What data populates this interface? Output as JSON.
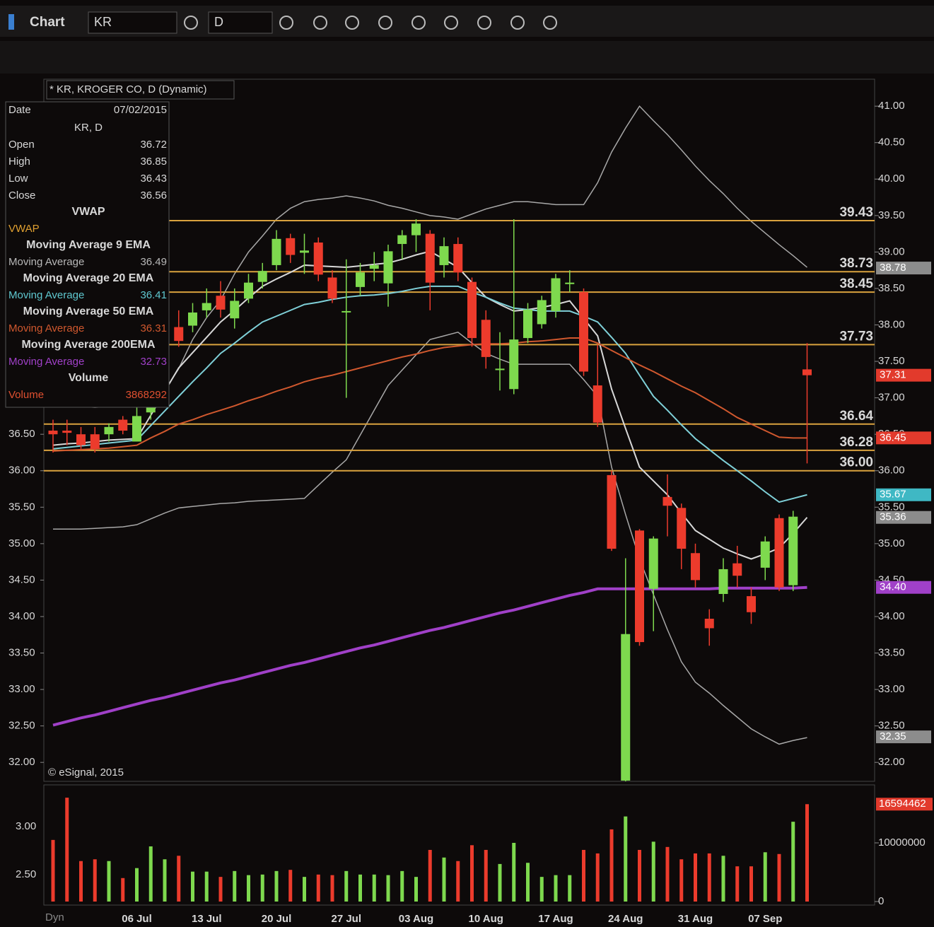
{
  "toolbar": {
    "title": "Chart",
    "symbol": "KR",
    "interval": "D"
  },
  "footer": {
    "mode": "Dyn"
  },
  "chart_data": {
    "type": "candlestick",
    "title": "* KR, KROGER CO, D (Dynamic)",
    "credit": "© eSignal, 2015",
    "categories": [
      null,
      null,
      null,
      null,
      null,
      null,
      "06 Jul",
      null,
      null,
      null,
      null,
      "13 Jul",
      null,
      null,
      null,
      null,
      "20 Jul",
      null,
      null,
      null,
      null,
      "27 Jul",
      null,
      null,
      null,
      null,
      "03 Aug",
      null,
      null,
      null,
      null,
      "10 Aug",
      null,
      null,
      null,
      null,
      "17 Aug",
      null,
      null,
      null,
      null,
      "24 Aug",
      null,
      null,
      null,
      null,
      "31 Aug",
      null,
      null,
      null,
      null,
      "07 Sep",
      null,
      null,
      null
    ],
    "open": [
      36.55,
      36.55,
      36.5,
      36.5,
      36.5,
      36.7,
      36.4,
      36.8,
      37.1,
      37.97,
      37.99,
      38.2,
      38.4,
      38.09,
      38.36,
      38.59,
      38.82,
      39.19,
      38.99,
      39.13,
      38.65,
      38.18,
      38.52,
      38.77,
      38.57,
      39.11,
      39.23,
      39.25,
      38.82,
      39.11,
      38.59,
      38.07,
      37.38,
      37.12,
      37.82,
      38.01,
      38.19,
      38.56,
      38.45,
      37.17,
      35.94,
      31.75,
      35.18,
      34.38,
      35.64,
      35.49,
      34.87,
      33.97,
      34.31,
      34.73,
      34.28,
      34.67,
      35.35,
      34.43,
      37.39
    ],
    "high": [
      36.7,
      36.7,
      36.6,
      36.6,
      36.65,
      36.75,
      36.9,
      37.1,
      37.4,
      38.2,
      38.3,
      38.5,
      38.6,
      38.5,
      38.7,
      38.85,
      39.3,
      39.25,
      39.25,
      39.2,
      38.75,
      38.9,
      38.85,
      39.0,
      39.1,
      39.3,
      39.45,
      39.3,
      39.2,
      39.2,
      38.65,
      38.2,
      37.9,
      39.45,
      38.3,
      38.4,
      38.7,
      38.75,
      38.5,
      37.73,
      36.0,
      34.8,
      35.2,
      35.1,
      35.95,
      35.55,
      35.0,
      34.1,
      34.8,
      34.97,
      34.4,
      35.1,
      35.4,
      35.45,
      37.75
    ],
    "low": [
      36.25,
      36.35,
      36.3,
      36.25,
      36.4,
      36.5,
      36.4,
      36.7,
      37.0,
      37.7,
      37.9,
      38.1,
      38.1,
      37.95,
      38.3,
      38.5,
      38.75,
      38.85,
      38.7,
      38.6,
      38.3,
      37.0,
      38.4,
      38.6,
      38.25,
      38.9,
      39.0,
      38.2,
      38.65,
      38.6,
      37.7,
      37.4,
      37.1,
      37.05,
      37.75,
      37.95,
      38.1,
      38.45,
      37.3,
      36.6,
      34.9,
      31.6,
      33.6,
      33.8,
      35.1,
      34.65,
      34.4,
      33.6,
      34.2,
      34.4,
      33.9,
      34.5,
      34.35,
      34.35,
      36.1
    ],
    "close": [
      36.5,
      36.52,
      36.35,
      36.3,
      36.6,
      36.55,
      36.75,
      37.0,
      37.3,
      37.78,
      38.17,
      38.3,
      38.21,
      38.33,
      38.58,
      38.74,
      39.18,
      38.96,
      39.02,
      38.69,
      38.36,
      38.19,
      38.72,
      38.82,
      39.01,
      39.23,
      39.39,
      38.58,
      39.08,
      38.72,
      37.82,
      37.56,
      37.4,
      37.8,
      38.21,
      38.34,
      38.64,
      38.58,
      37.36,
      36.66,
      34.93,
      33.76,
      33.65,
      35.07,
      35.52,
      34.93,
      34.5,
      33.84,
      34.65,
      34.56,
      34.06,
      35.03,
      34.4,
      35.37,
      37.31
    ],
    "up_color": "#7ed94e",
    "down_color": "#ec3b2c",
    "series": [
      {
        "name": "Moving Average 9 EMA",
        "color": "#d8d8d8",
        "values": [
          36.35,
          36.37,
          36.38,
          36.4,
          36.42,
          36.43,
          36.44,
          36.76,
          37.09,
          37.41,
          37.62,
          37.83,
          38.04,
          38.2,
          38.37,
          38.53,
          38.63,
          38.72,
          38.82,
          38.81,
          38.8,
          38.79,
          38.81,
          38.83,
          38.85,
          38.9,
          38.96,
          39.01,
          38.9,
          38.79,
          38.58,
          38.38,
          38.28,
          38.19,
          38.21,
          38.24,
          38.28,
          38.33,
          38.09,
          37.85,
          37.12,
          36.58,
          36.05,
          35.86,
          35.67,
          35.42,
          35.18,
          35.06,
          34.94,
          34.86,
          34.79,
          34.86,
          34.94,
          35.14,
          35.36
        ]
      },
      {
        "name": "Moving Average 20 EMA",
        "color": "#7fd0d8",
        "values": [
          36.3,
          36.32,
          36.34,
          36.36,
          36.38,
          36.4,
          36.42,
          36.62,
          36.82,
          37.02,
          37.22,
          37.41,
          37.61,
          37.75,
          37.9,
          38.04,
          38.12,
          38.2,
          38.28,
          38.31,
          38.35,
          38.38,
          38.4,
          38.41,
          38.43,
          38.46,
          38.5,
          38.53,
          38.53,
          38.53,
          38.45,
          38.38,
          38.3,
          38.23,
          38.21,
          38.19,
          38.19,
          38.19,
          38.12,
          38.04,
          37.83,
          37.61,
          37.31,
          37.02,
          36.83,
          36.63,
          36.44,
          36.29,
          36.14,
          36.0,
          35.86,
          35.71,
          35.57,
          35.62,
          35.67
        ]
      },
      {
        "name": "Moving Average 50 EMA",
        "color": "#d0582e",
        "values": [
          36.27,
          36.28,
          36.29,
          36.3,
          36.31,
          36.33,
          36.35,
          36.45,
          36.54,
          36.64,
          36.7,
          36.77,
          36.83,
          36.89,
          36.96,
          37.02,
          37.09,
          37.15,
          37.22,
          37.27,
          37.31,
          37.36,
          37.41,
          37.46,
          37.51,
          37.56,
          37.6,
          37.65,
          37.69,
          37.71,
          37.73,
          37.74,
          37.74,
          37.75,
          37.77,
          37.78,
          37.8,
          37.82,
          37.82,
          37.75,
          37.65,
          37.55,
          37.45,
          37.36,
          37.26,
          37.16,
          37.07,
          36.96,
          36.85,
          36.73,
          36.64,
          36.55,
          36.46,
          36.45,
          36.45
        ]
      },
      {
        "name": "Moving Average 200EMA",
        "color": "#a040c8",
        "values": [
          32.51,
          32.56,
          32.61,
          32.65,
          32.7,
          32.75,
          32.8,
          32.85,
          32.89,
          32.94,
          32.99,
          33.04,
          33.09,
          33.13,
          33.18,
          33.23,
          33.28,
          33.33,
          33.37,
          33.42,
          33.47,
          33.52,
          33.57,
          33.61,
          33.66,
          33.71,
          33.76,
          33.81,
          33.85,
          33.9,
          33.95,
          34.0,
          34.05,
          34.09,
          34.14,
          34.19,
          34.24,
          34.29,
          34.33,
          34.38,
          34.38,
          34.38,
          34.38,
          34.38,
          34.38,
          34.38,
          34.38,
          34.38,
          34.39,
          34.39,
          34.39,
          34.39,
          34.39,
          34.39,
          34.4
        ]
      }
    ],
    "bands": {
      "color": "#a8a8a8",
      "upper": [
        36.9,
        36.9,
        36.88,
        36.87,
        36.88,
        36.9,
        36.95,
        37.0,
        37.1,
        37.4,
        37.8,
        38.1,
        38.34,
        38.7,
        39.0,
        39.22,
        39.45,
        39.6,
        39.69,
        39.72,
        39.74,
        39.77,
        39.74,
        39.7,
        39.64,
        39.6,
        39.55,
        39.5,
        39.48,
        39.45,
        39.52,
        39.59,
        39.64,
        39.69,
        39.69,
        39.67,
        39.65,
        39.65,
        39.65,
        39.95,
        40.37,
        40.7,
        41.0,
        40.8,
        40.61,
        40.4,
        40.18,
        39.98,
        39.8,
        39.6,
        39.42,
        39.26,
        39.1,
        38.95,
        38.79
      ],
      "lower": [
        35.2,
        35.2,
        35.2,
        35.21,
        35.22,
        35.23,
        35.26,
        35.34,
        35.42,
        35.49,
        35.51,
        35.53,
        35.55,
        35.56,
        35.58,
        35.59,
        35.6,
        35.61,
        35.62,
        35.8,
        35.98,
        36.15,
        36.49,
        36.83,
        37.17,
        37.38,
        37.59,
        37.8,
        37.85,
        37.9,
        37.75,
        37.61,
        37.53,
        37.46,
        37.46,
        37.46,
        37.46,
        37.46,
        37.25,
        37.02,
        36.05,
        35.4,
        34.79,
        34.3,
        33.82,
        33.38,
        33.1,
        32.95,
        32.78,
        32.62,
        32.46,
        32.35,
        32.25,
        32.3,
        32.34
      ]
    },
    "levels": {
      "color": "#d9a23e",
      "values": [
        39.43,
        38.73,
        38.45,
        37.73,
        36.64,
        36.28,
        {
          "value": 36,
          "label": "36.00"
        }
      ]
    },
    "price_tags": [
      {
        "value": 38.78,
        "color": "#8c8c8c"
      },
      {
        "value": 37.31,
        "color": "#e23a2c"
      },
      {
        "value": 36.45,
        "color": "#e23a2c"
      },
      {
        "value": 35.67,
        "color": "#3fb8c4"
      },
      {
        "value": 35.36,
        "color": "#8c8c8c"
      },
      {
        "value": 34.4,
        "label": "34.40",
        "color": "#a040c8"
      },
      {
        "value": 32.35,
        "color": "#8c8c8c"
      }
    ],
    "ylim": [
      31.74,
      41.37
    ],
    "yticks": [
      {
        "value": 32,
        "label": "32.00"
      },
      {
        "value": 32.5,
        "label": "32.50"
      },
      {
        "value": 33,
        "label": "33.00"
      },
      {
        "value": 33.5,
        "label": "33.50"
      },
      {
        "value": 34,
        "label": "34.00"
      },
      {
        "value": 34.5,
        "label": "34.50"
      },
      {
        "value": 35,
        "label": "35.00"
      },
      {
        "value": 35.5,
        "label": "35.50"
      },
      {
        "value": 36,
        "label": "36.00"
      },
      {
        "value": 36.5,
        "label": "36.50"
      },
      {
        "value": 37,
        "label": "37.00"
      },
      {
        "value": 37.5,
        "label": "37.50"
      },
      {
        "value": 38,
        "label": "38.00"
      },
      {
        "value": 38.5,
        "label": "38.50"
      },
      {
        "value": 39,
        "label": "39.00"
      },
      {
        "value": 39.5,
        "label": "39.50"
      },
      {
        "value": 40,
        "label": "40.00"
      },
      {
        "value": 40.5,
        "label": "40.50"
      },
      {
        "value": 41,
        "label": "41.00"
      }
    ],
    "volume": {
      "values": [
        10500000,
        17700000,
        6900000,
        7200000,
        6900000,
        4000000,
        5700000,
        9400000,
        7200000,
        7800000,
        5100000,
        5100000,
        4200000,
        5200000,
        4500000,
        4600000,
        5200000,
        5400000,
        4200000,
        4600000,
        4500000,
        5200000,
        4600000,
        4600000,
        4500000,
        5200000,
        4200000,
        8800000,
        7500000,
        6900000,
        9600000,
        8800000,
        6400000,
        10000000,
        6600000,
        4200000,
        4500000,
        4500000,
        8800000,
        8200000,
        12300000,
        14500000,
        8800000,
        10200000,
        9300000,
        7200000,
        8200000,
        8200000,
        7800000,
        6000000,
        6000000,
        8400000,
        8100000,
        13600000,
        16594462
      ],
      "ylim": [
        0,
        19640000
      ],
      "yticks": [
        0,
        10000000
      ],
      "last_color": "#e23a2c",
      "left_labels": [
        "3.00",
        "2.50"
      ]
    },
    "data_window": {
      "date_label": "Date",
      "date": "07/02/2015",
      "symbol": "KR, D",
      "ohlc": [
        {
          "label": "Open",
          "value": 36.72
        },
        {
          "label": "High",
          "value": 36.85
        },
        {
          "label": "Low",
          "value": 36.43
        },
        {
          "label": "Close",
          "value": 36.56
        }
      ],
      "studies": [
        {
          "header": "VWAP",
          "label": "VWAP",
          "color": "#e0a030"
        },
        {
          "header": "Moving Average 9 EMA",
          "label": "Moving Average",
          "value": 36.49,
          "color": "#b8b8b8"
        },
        {
          "header": "Moving Average 20 EMA",
          "label": "Moving Average",
          "value": 36.41,
          "color": "#5fc8d0"
        },
        {
          "header": "Moving Average 50 EMA",
          "label": "Moving Average",
          "value": 36.31,
          "color": "#d0582e"
        },
        {
          "header": "Moving Average 200EMA",
          "label": "Moving Average",
          "value": 32.73,
          "color": "#a040c8"
        },
        {
          "header": "Volume",
          "label": "Volume",
          "value": 3868292,
          "color": "#e05030"
        }
      ]
    }
  }
}
